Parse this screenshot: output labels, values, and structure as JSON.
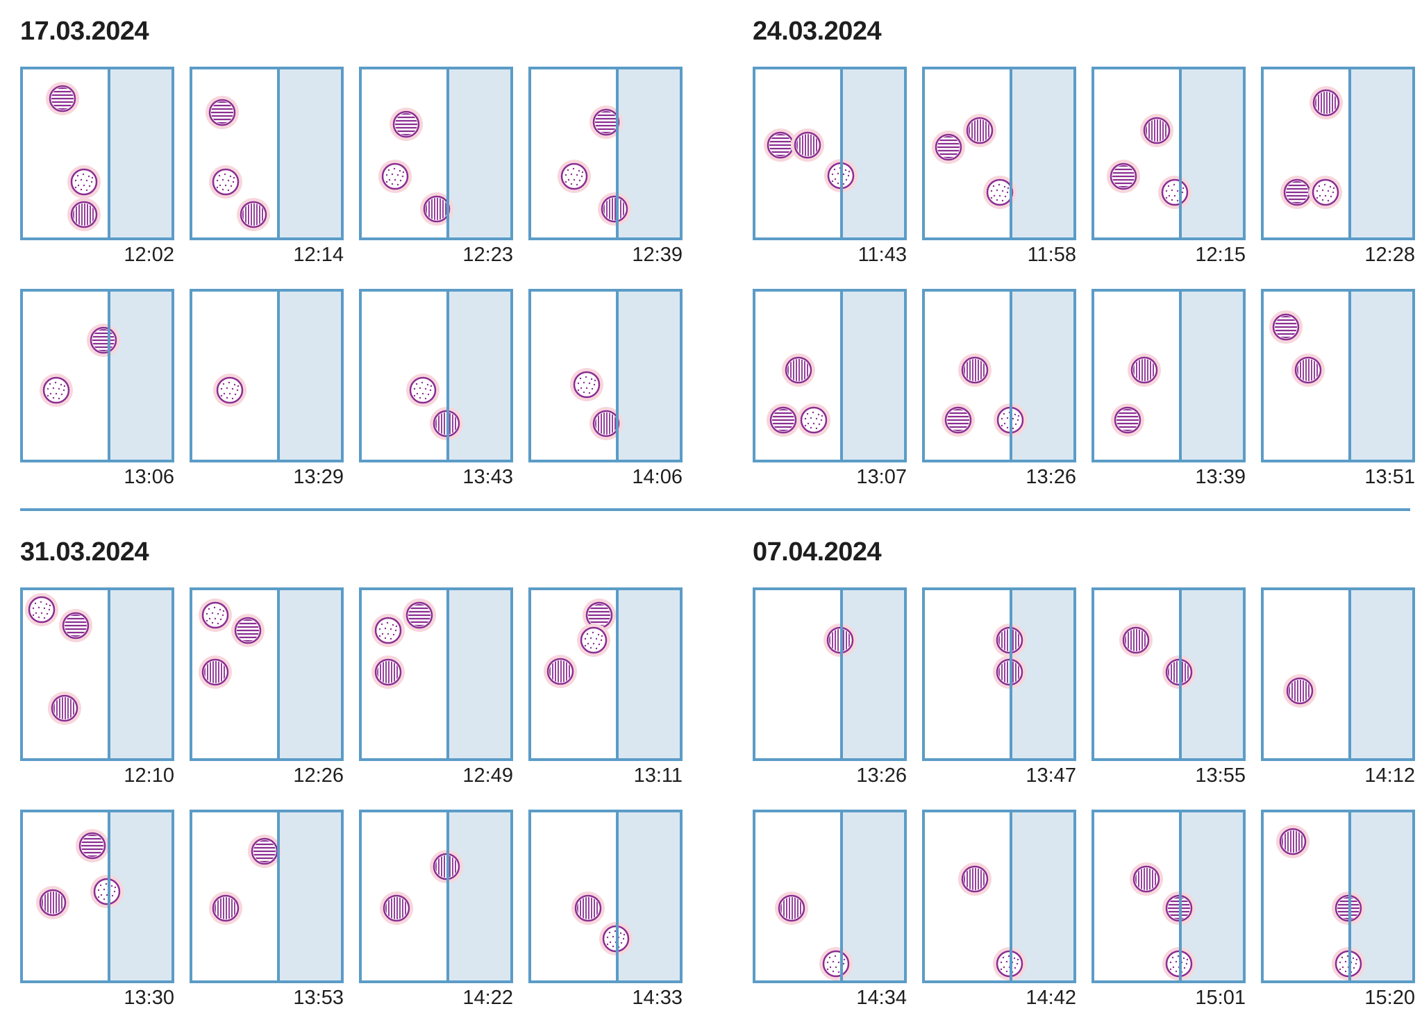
{
  "colors": {
    "frame": "#5b9cc7",
    "zone": "#dae7f1",
    "dot_halo": "#f7d6dc",
    "dot_line": "#8b2d91",
    "divider": "#5b9cc7"
  },
  "groups": [
    {
      "date": "17.03.2024",
      "panels": [
        {
          "time": "12:02",
          "dots": [
            {
              "pattern": "horizontal"
            },
            {
              "pattern": "dotted"
            },
            {
              "pattern": "vertical"
            }
          ]
        },
        {
          "time": "12:14",
          "dots": [
            {
              "pattern": "horizontal"
            },
            {
              "pattern": "dotted"
            },
            {
              "pattern": "vertical"
            }
          ]
        },
        {
          "time": "12:23",
          "dots": [
            {
              "pattern": "horizontal"
            },
            {
              "pattern": "dotted"
            },
            {
              "pattern": "vertical"
            }
          ]
        },
        {
          "time": "12:39",
          "dots": [
            {
              "pattern": "horizontal"
            },
            {
              "pattern": "dotted"
            },
            {
              "pattern": "vertical"
            }
          ]
        },
        {
          "time": "13:06",
          "dots": [
            {
              "pattern": "horizontal"
            },
            {
              "pattern": "dotted"
            }
          ]
        },
        {
          "time": "13:29",
          "dots": [
            {
              "pattern": "dotted"
            }
          ]
        },
        {
          "time": "13:43",
          "dots": [
            {
              "pattern": "dotted"
            },
            {
              "pattern": "vertical"
            }
          ]
        },
        {
          "time": "14:06",
          "dots": [
            {
              "pattern": "dotted"
            },
            {
              "pattern": "vertical"
            }
          ]
        }
      ]
    },
    {
      "date": "24.03.2024",
      "panels": [
        {
          "time": "11:43",
          "dots": [
            {
              "pattern": "horizontal"
            },
            {
              "pattern": "vertical"
            },
            {
              "pattern": "dotted"
            }
          ]
        },
        {
          "time": "11:58",
          "dots": [
            {
              "pattern": "horizontal"
            },
            {
              "pattern": "vertical"
            },
            {
              "pattern": "dotted"
            }
          ]
        },
        {
          "time": "12:15",
          "dots": [
            {
              "pattern": "vertical"
            },
            {
              "pattern": "horizontal"
            },
            {
              "pattern": "dotted"
            }
          ]
        },
        {
          "time": "12:28",
          "dots": [
            {
              "pattern": "vertical"
            },
            {
              "pattern": "horizontal"
            },
            {
              "pattern": "dotted"
            }
          ]
        },
        {
          "time": "13:07",
          "dots": [
            {
              "pattern": "vertical"
            },
            {
              "pattern": "horizontal"
            },
            {
              "pattern": "dotted"
            }
          ]
        },
        {
          "time": "13:26",
          "dots": [
            {
              "pattern": "vertical"
            },
            {
              "pattern": "horizontal"
            },
            {
              "pattern": "dotted"
            }
          ]
        },
        {
          "time": "13:39",
          "dots": [
            {
              "pattern": "vertical"
            },
            {
              "pattern": "horizontal"
            }
          ]
        },
        {
          "time": "13:51",
          "dots": [
            {
              "pattern": "horizontal"
            },
            {
              "pattern": "vertical"
            }
          ]
        }
      ]
    },
    {
      "date": "31.03.2024",
      "panels": [
        {
          "time": "12:10",
          "dots": [
            {
              "pattern": "dotted"
            },
            {
              "pattern": "horizontal"
            },
            {
              "pattern": "vertical"
            }
          ]
        },
        {
          "time": "12:26",
          "dots": [
            {
              "pattern": "dotted"
            },
            {
              "pattern": "horizontal"
            },
            {
              "pattern": "vertical"
            }
          ]
        },
        {
          "time": "12:49",
          "dots": [
            {
              "pattern": "dotted"
            },
            {
              "pattern": "horizontal"
            },
            {
              "pattern": "vertical"
            }
          ]
        },
        {
          "time": "13:11",
          "dots": [
            {
              "pattern": "horizontal"
            },
            {
              "pattern": "dotted"
            },
            {
              "pattern": "vertical"
            }
          ]
        },
        {
          "time": "13:30",
          "dots": [
            {
              "pattern": "horizontal"
            },
            {
              "pattern": "vertical"
            },
            {
              "pattern": "dotted"
            }
          ]
        },
        {
          "time": "13:53",
          "dots": [
            {
              "pattern": "horizontal"
            },
            {
              "pattern": "vertical"
            }
          ]
        },
        {
          "time": "14:22",
          "dots": [
            {
              "pattern": "vertical"
            },
            {
              "pattern": "vertical"
            }
          ]
        },
        {
          "time": "14:33",
          "dots": [
            {
              "pattern": "vertical"
            },
            {
              "pattern": "dotted"
            }
          ]
        }
      ]
    },
    {
      "date": "07.04.2024",
      "panels": [
        {
          "time": "13:26",
          "dots": [
            {
              "pattern": "vertical"
            }
          ]
        },
        {
          "time": "13:47",
          "dots": [
            {
              "pattern": "vertical"
            },
            {
              "pattern": "vertical"
            }
          ]
        },
        {
          "time": "13:55",
          "dots": [
            {
              "pattern": "vertical"
            },
            {
              "pattern": "vertical"
            }
          ]
        },
        {
          "time": "14:12",
          "dots": [
            {
              "pattern": "vertical"
            }
          ]
        },
        {
          "time": "14:34",
          "dots": [
            {
              "pattern": "vertical"
            },
            {
              "pattern": "dotted"
            }
          ]
        },
        {
          "time": "14:42",
          "dots": [
            {
              "pattern": "vertical"
            },
            {
              "pattern": "dotted"
            }
          ]
        },
        {
          "time": "15:01",
          "dots": [
            {
              "pattern": "vertical"
            },
            {
              "pattern": "horizontal"
            },
            {
              "pattern": "dotted"
            }
          ]
        },
        {
          "time": "15:20",
          "dots": [
            {
              "pattern": "vertical"
            },
            {
              "pattern": "horizontal"
            },
            {
              "pattern": "dotted"
            }
          ]
        }
      ]
    }
  ]
}
